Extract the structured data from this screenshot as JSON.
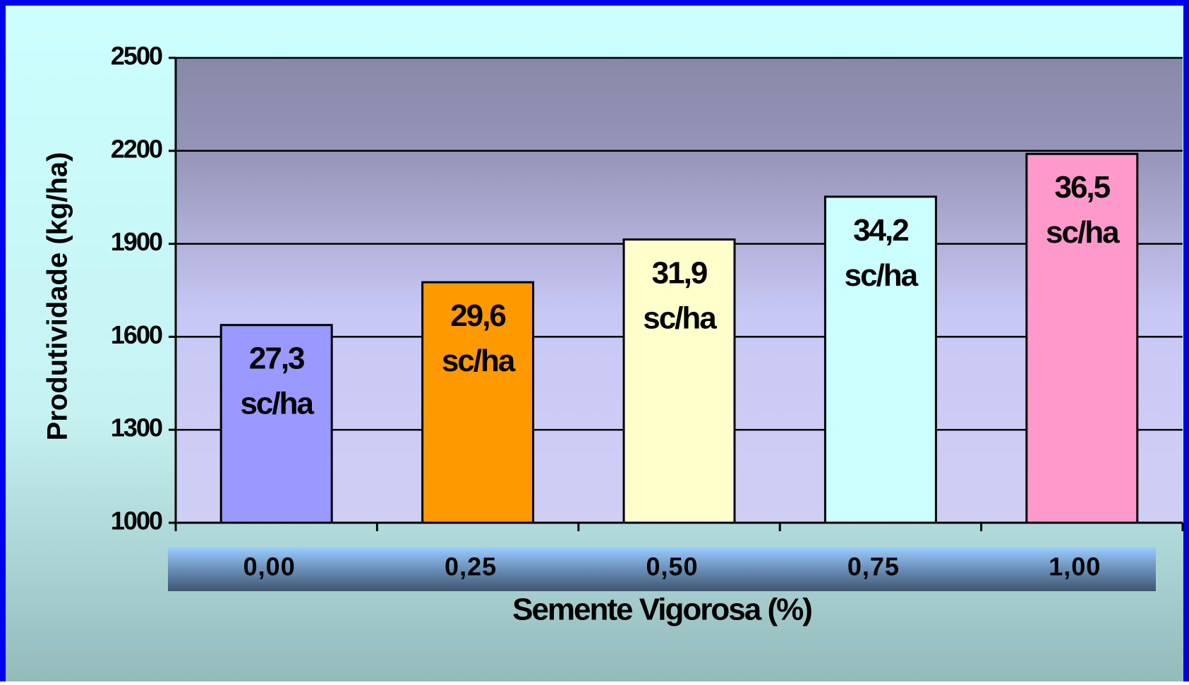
{
  "chart_data": {
    "type": "bar",
    "y_label": "Produtividade (kg/ha)",
    "x_label": "Semente Vigorosa (%)",
    "categories": [
      "0,00",
      "0,25",
      "0,50",
      "0,75",
      "1,00"
    ],
    "values": [
      1638,
      1776,
      1914,
      2052,
      2190
    ],
    "value_labels": [
      "27,3 sc/ha",
      "29,6 sc/ha",
      "31,9 sc/ha",
      "34,2 sc/ha",
      "36,5 sc/ha"
    ],
    "colors": [
      "#9999ff",
      "#ff9900",
      "#ffffcc",
      "#ccffff",
      "#ff99cc"
    ],
    "ylim": [
      1000,
      2500
    ],
    "yticks": [
      1000,
      1300,
      1600,
      1900,
      2200,
      2500
    ],
    "grid": true
  }
}
